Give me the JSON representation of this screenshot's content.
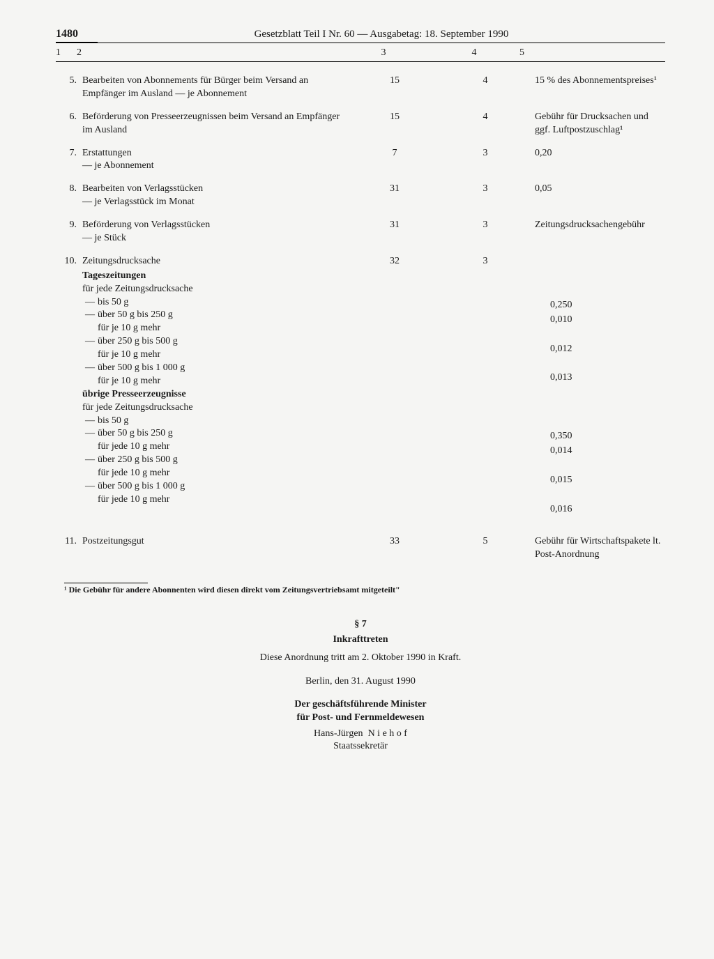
{
  "page_number": "1480",
  "header": "Gesetzblatt Teil I Nr. 60 — Ausgabetag: 18. September 1990",
  "col_heads": {
    "c1": "1",
    "c2": "2",
    "c3": "3",
    "c4": "4",
    "c5": "5"
  },
  "rows": [
    {
      "n": "5.",
      "desc": "Bearbeiten von Abonnements für Bürger beim Versand an Empfänger im Ausland — je Abonnement",
      "c3": "15",
      "c4": "4",
      "c5": "15 % des Abonnements­preises¹"
    },
    {
      "n": "6.",
      "desc": "Beförderung von Presseerzeugnissen beim Versand an Empfänger im Ausland",
      "c3": "15",
      "c4": "4",
      "c5": "Gebühr für Drucksachen und ggf. Luftpost­zuschlag¹"
    },
    {
      "n": "7.",
      "desc": "Erstattungen\n— je Abonnement",
      "c3": "7",
      "c4": "3",
      "c5": "0,20"
    },
    {
      "n": "8.",
      "desc": "Bearbeiten von Verlagsstücken\n— je Verlagsstück im Monat",
      "c3": "31",
      "c4": "3",
      "c5": "0,05"
    },
    {
      "n": "9.",
      "desc": "Beförderung von Verlagsstücken\n— je Stück",
      "c3": "31",
      "c4": "3",
      "c5": "Zeitungsdrucksachen­gebühr"
    }
  ],
  "row10": {
    "n": "10.",
    "title": "Zeitungsdrucksache",
    "c3": "32",
    "c4": "3",
    "group1_head": "Tageszeitungen",
    "group1_sub": "für jede Zeitungsdrucksache",
    "group1": [
      {
        "t": "bis 50 g",
        "p": "0,250"
      },
      {
        "t": "über 50 g bis 250 g",
        "t2": "für je 10 g mehr",
        "p": "0,010"
      },
      {
        "t": "über 250 g bis 500 g",
        "t2": "für je 10 g mehr",
        "p": "0,012"
      },
      {
        "t": "über 500 g bis 1 000 g",
        "t2": "für je 10 g mehr",
        "p": "0,013"
      }
    ],
    "group2_head": "übrige Presseerzeugnisse",
    "group2_sub": "für jede Zeitungsdrucksache",
    "group2": [
      {
        "t": "bis 50 g",
        "p": "0,350"
      },
      {
        "t": "über 50 g bis 250 g",
        "t2": "für jede 10 g mehr",
        "p": "0,014"
      },
      {
        "t": "über 250 g bis 500 g",
        "t2": "für jede 10 g mehr",
        "p": "0,015"
      },
      {
        "t": "über 500 g bis 1 000 g",
        "t2": "für jede 10 g mehr",
        "p": "0,016"
      }
    ]
  },
  "row11": {
    "n": "11.",
    "desc": "Postzeitungsgut",
    "c3": "33",
    "c4": "5",
    "c5": "Gebühr für Wirtschafts­pakete lt. Post-Anord­nung"
  },
  "footnote": "¹ Die Gebühr für andere Abonnenten wird diesen direkt vom Zeitungsvertriebsamt mitgeteilt\"",
  "section7": {
    "para": "§ 7",
    "title": "Inkrafttreten",
    "text": "Diese Anordnung tritt am 2. Oktober 1990 in Kraft.",
    "date": "Berlin, den 31. August 1990",
    "minister_l1": "Der geschäftsführende Minister",
    "minister_l2": "für Post- und Fernmeldewesen",
    "name_first": "Hans-Jürgen",
    "name_last": "N i e h o f",
    "role": "Staatssekretär"
  }
}
